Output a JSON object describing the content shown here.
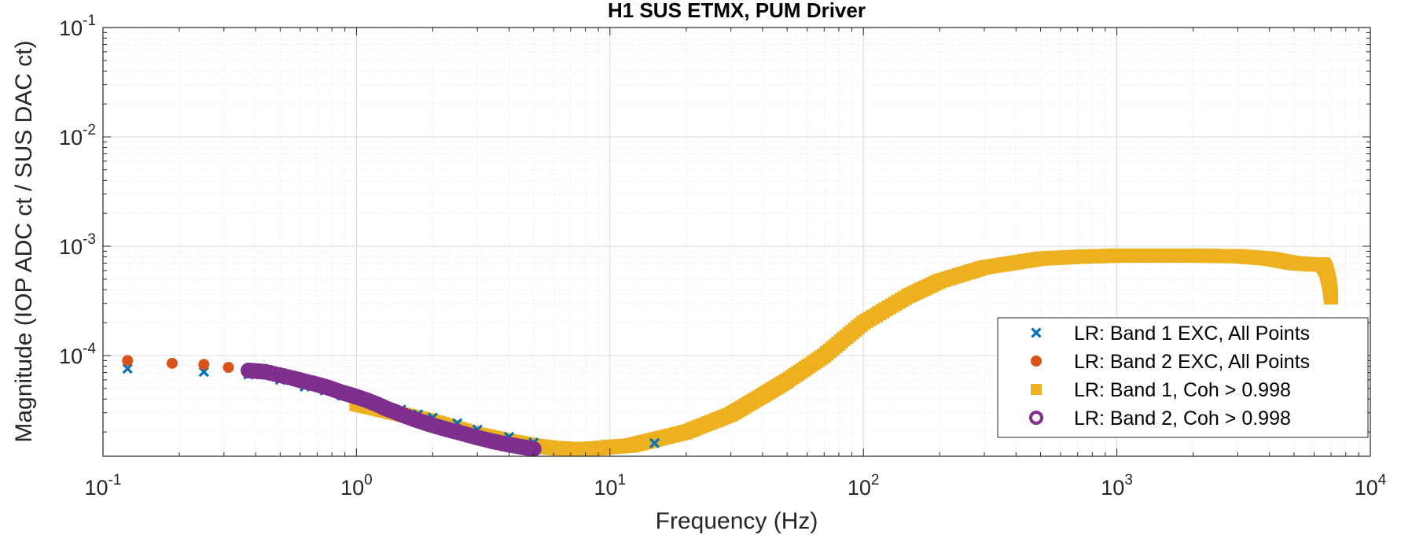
{
  "chart_data": {
    "type": "scatter",
    "title": "H1 SUS ETMX, PUM Driver",
    "xlabel": "Frequency (Hz)",
    "ylabel": "Magnitude (IOP ADC ct / SUS DAC ct)",
    "xscale": "log",
    "yscale": "log",
    "xlim": [
      0.1,
      10000
    ],
    "ylim": [
      1.2e-05,
      0.1
    ],
    "x_ticks": [
      {
        "base": "10",
        "exp": "-1"
      },
      {
        "base": "10",
        "exp": "0"
      },
      {
        "base": "10",
        "exp": "1"
      },
      {
        "base": "10",
        "exp": "2"
      },
      {
        "base": "10",
        "exp": "3"
      },
      {
        "base": "10",
        "exp": "4"
      }
    ],
    "y_ticks": [
      {
        "base": "10",
        "exp": "-4"
      },
      {
        "base": "10",
        "exp": "-3"
      },
      {
        "base": "10",
        "exp": "-2"
      },
      {
        "base": "10",
        "exp": "-1"
      }
    ],
    "grid": true,
    "legend_position": "bottom-right",
    "series": [
      {
        "name": "LR: Band 1 EXC, All Points",
        "marker": "x",
        "color": "#0072BD",
        "x": [
          0.125,
          0.25,
          0.375,
          0.5,
          0.625,
          0.75,
          0.875,
          1.0,
          1.125,
          1.25,
          1.5,
          1.75,
          2.0,
          2.5,
          3.0,
          4.0,
          5.0,
          15.0
        ],
        "y": [
          7.6e-05,
          7.1e-05,
          6.7e-05,
          6e-05,
          5.2e-05,
          4.8e-05,
          4.3e-05,
          4e-05,
          3.8e-05,
          3.6e-05,
          3.2e-05,
          2.9e-05,
          2.7e-05,
          2.4e-05,
          2.1e-05,
          1.8e-05,
          1.6e-05,
          1.58e-05
        ]
      },
      {
        "name": "LR: Band 2 EXC, All Points",
        "marker": "filled-circle",
        "color": "#D95319",
        "x": [
          0.125,
          0.1875,
          0.25,
          0.3125,
          0.375,
          0.4375,
          0.5,
          0.5625,
          0.625,
          0.6875,
          0.75,
          0.8125,
          0.875,
          0.9375,
          1.0
        ],
        "y": [
          9e-05,
          8.5e-05,
          8.3e-05,
          7.8e-05,
          7.2e-05,
          6.9e-05,
          6.4e-05,
          6.2e-05,
          5.8e-05,
          5.5e-05,
          5.2e-05,
          5e-05,
          4.7e-05,
          4.5e-05,
          4.3e-05
        ]
      },
      {
        "name": "LR: Band 1, Coh > 0.998",
        "marker": "square",
        "color": "#EDB120",
        "x": [
          1.0,
          1.5,
          2.0,
          3.0,
          4.0,
          5.0,
          6.0,
          7.0,
          8.0,
          9.0,
          10.0,
          12.0,
          15.0,
          20.0,
          30.0,
          40.0,
          50.0,
          70.0,
          100.0,
          150.0,
          200.0,
          300.0,
          500.0,
          700.0,
          1000.0,
          2000.0,
          3000.0,
          4000.0,
          5000.0,
          6000.0,
          6500.0,
          6700.0,
          6900.0,
          7000.0
        ],
        "y": [
          3.6e-05,
          2.9e-05,
          2.5e-05,
          1.9e-05,
          1.65e-05,
          1.5e-05,
          1.43e-05,
          1.4e-05,
          1.4e-05,
          1.42e-05,
          1.46e-05,
          1.5e-05,
          1.7e-05,
          2e-05,
          2.9e-05,
          4.3e-05,
          5.9e-05,
          0.0001,
          0.0002,
          0.00035,
          0.00048,
          0.00064,
          0.00077,
          0.0008,
          0.00082,
          0.00082,
          0.00081,
          0.00077,
          0.0007,
          0.00068,
          0.00068,
          0.0006,
          0.00045,
          0.00034
        ]
      },
      {
        "name": "LR: Band 2, Coh > 0.998",
        "marker": "open-circle",
        "color": "#7E2F8E",
        "x": [
          0.375,
          0.4375,
          0.5625,
          0.625,
          0.6875,
          0.75,
          0.8125,
          0.875,
          0.9375,
          1.0,
          1.1,
          1.2,
          1.3,
          1.4,
          1.5,
          1.7,
          2.0,
          2.3,
          2.6,
          3.0,
          3.5,
          4.0,
          4.5,
          5.0
        ],
        "y": [
          7.3e-05,
          7.1e-05,
          6.2e-05,
          5.8e-05,
          5.5e-05,
          5.2e-05,
          4.9e-05,
          4.6e-05,
          4.4e-05,
          4.2e-05,
          3.9e-05,
          3.6e-05,
          3.3e-05,
          3.1e-05,
          2.9e-05,
          2.6e-05,
          2.3e-05,
          2.1e-05,
          1.95e-05,
          1.78e-05,
          1.63e-05,
          1.53e-05,
          1.46e-05,
          1.4e-05
        ]
      }
    ]
  }
}
